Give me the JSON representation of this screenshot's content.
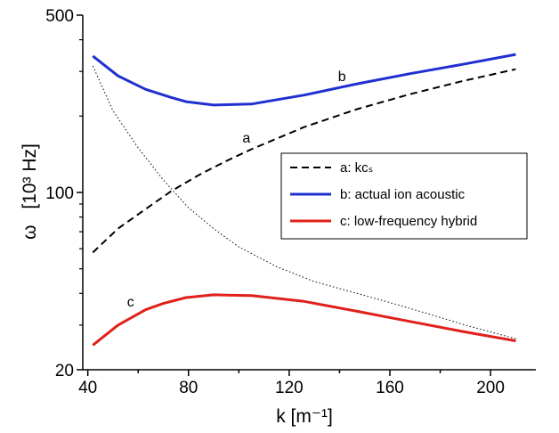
{
  "chart_data": {
    "type": "line",
    "x_scale": "linear",
    "y_scale": "log",
    "xlim": [
      38,
      218
    ],
    "ylim": [
      20,
      500
    ],
    "x_ticks": [
      40,
      80,
      120,
      160,
      200
    ],
    "x_tick_labels": [
      "40",
      "80",
      "120",
      "160",
      "200"
    ],
    "y_ticks": [
      20,
      100,
      500
    ],
    "y_tick_labels": [
      "20",
      "100",
      "500"
    ],
    "xlabel": "k [m⁻¹]",
    "ylabel_symbol": "ω",
    "ylabel_units": "[10³ Hz]",
    "grid": false,
    "legend_position": "center-right",
    "series": [
      {
        "name": "a: kcₛ",
        "label": "a",
        "style": "dashed",
        "color": "#000000",
        "x": [
          42,
          52,
          63,
          73,
          84,
          95,
          105,
          126,
          147,
          168,
          189,
          210
        ],
        "y": [
          58,
          72,
          86,
          101,
          117,
          133,
          148,
          181,
          213,
          244,
          275,
          306
        ]
      },
      {
        "name": "b: actual ion acoustic",
        "label": "b",
        "style": "solid",
        "color": "#1f2fd0",
        "x": [
          42,
          52,
          63,
          73,
          79,
          90,
          105,
          126,
          147,
          168,
          189,
          210
        ],
        "y": [
          345,
          288,
          255,
          237,
          228,
          221,
          223,
          242,
          268,
          294,
          320,
          350
        ]
      },
      {
        "name": "c: low-frequency hybrid",
        "label": "c",
        "style": "solid",
        "color": "#e0201a",
        "x": [
          42,
          52,
          63,
          70,
          79,
          90,
          105,
          126,
          147,
          168,
          189,
          210
        ],
        "y": [
          25,
          30,
          34.5,
          36.5,
          38.5,
          39.5,
          39.2,
          37.2,
          34,
          31,
          28.3,
          26
        ]
      },
      {
        "name": "",
        "style": "dotted",
        "color": "#000000",
        "x": [
          42,
          50,
          60,
          70,
          80,
          90,
          100,
          115,
          130,
          145,
          160,
          175,
          190,
          210
        ],
        "y": [
          315,
          210,
          150,
          112,
          87,
          72,
          61,
          51,
          44.5,
          40.5,
          36.8,
          33.3,
          30,
          26.5
        ]
      }
    ],
    "curve_labels": [
      {
        "text": "a",
        "x": 103,
        "y": 157
      },
      {
        "text": "b",
        "x": 141,
        "y": 275
      },
      {
        "text": "c",
        "x": 57,
        "y": 35.5
      }
    ]
  }
}
